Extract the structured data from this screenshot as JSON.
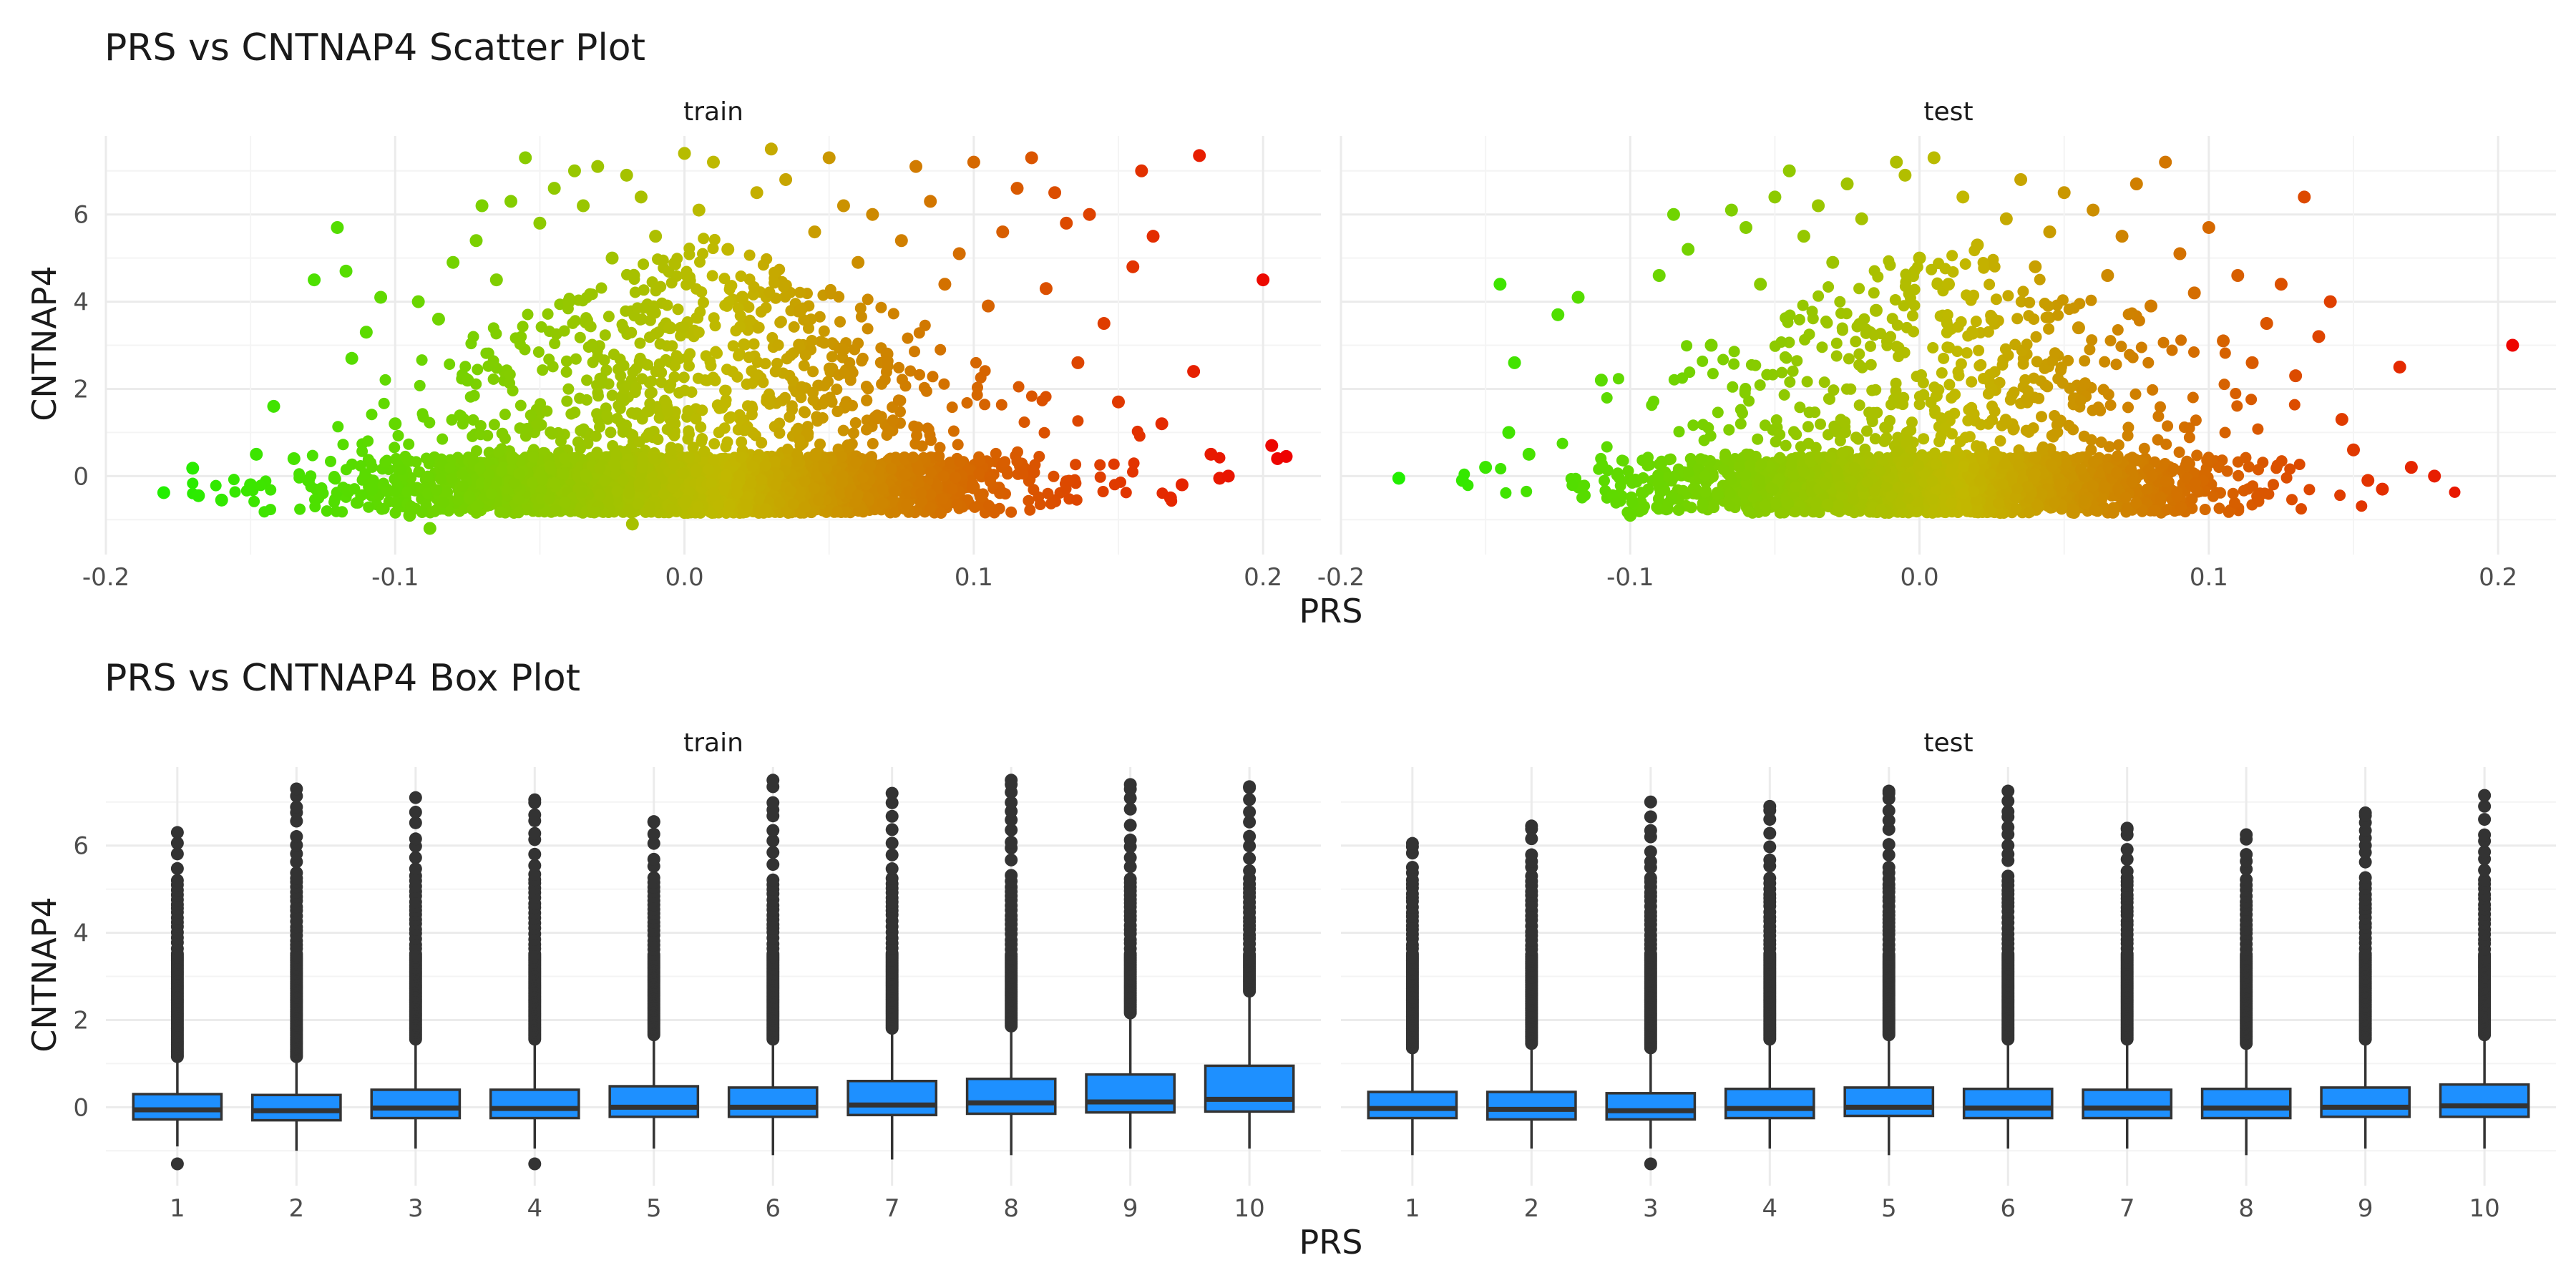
{
  "chart_data": [
    {
      "type": "scatter",
      "title": "PRS vs CNTNAP4 Scatter Plot",
      "xlabel": "PRS",
      "ylabel": "CNTNAP4",
      "facets": [
        "train",
        "test"
      ],
      "xlim": [
        -0.2,
        0.22
      ],
      "ylim": [
        -1.8,
        7.8
      ],
      "xticks": [
        -0.2,
        -0.1,
        0.0,
        0.1,
        0.2
      ],
      "xtick_labels": [
        "-0.2",
        "-0.1",
        "0.0",
        "0.1",
        "0.2"
      ],
      "yticks": [
        0,
        2,
        4,
        6
      ],
      "ytick_labels": [
        "0",
        "2",
        "4",
        "6"
      ],
      "color_scale": {
        "low": "#22ee00",
        "mid": "#c2b800",
        "high": "#ee0000",
        "mapped_to": "PRS"
      },
      "grid": true,
      "legend": "none",
      "series": [
        {
          "facet": "train",
          "points": [
            [
              -0.18,
              -0.38
            ],
            [
              -0.17,
              0.18
            ],
            [
              -0.168,
              -0.45
            ],
            [
              -0.16,
              -0.55
            ],
            [
              -0.15,
              -0.2
            ],
            [
              -0.148,
              0.5
            ],
            [
              -0.142,
              1.6
            ],
            [
              -0.135,
              0.4
            ],
            [
              -0.13,
              -0.1
            ],
            [
              -0.128,
              4.5
            ],
            [
              -0.12,
              5.7
            ],
            [
              -0.117,
              4.7
            ],
            [
              -0.115,
              2.7
            ],
            [
              -0.11,
              3.3
            ],
            [
              -0.108,
              -0.3
            ],
            [
              -0.105,
              4.1
            ],
            [
              -0.1,
              1.2
            ],
            [
              -0.095,
              -0.9
            ],
            [
              -0.092,
              4.0
            ],
            [
              -0.088,
              -1.2
            ],
            [
              -0.085,
              3.6
            ],
            [
              -0.08,
              4.9
            ],
            [
              -0.075,
              2.2
            ],
            [
              -0.072,
              5.4
            ],
            [
              -0.07,
              6.2
            ],
            [
              -0.065,
              4.5
            ],
            [
              -0.06,
              6.3
            ],
            [
              -0.055,
              7.3
            ],
            [
              -0.05,
              5.8
            ],
            [
              -0.045,
              6.6
            ],
            [
              -0.04,
              4.0
            ],
            [
              -0.038,
              7.0
            ],
            [
              -0.035,
              6.2
            ],
            [
              -0.03,
              7.1
            ],
            [
              -0.025,
              5.0
            ],
            [
              -0.02,
              6.9
            ],
            [
              -0.018,
              -1.1
            ],
            [
              -0.015,
              6.4
            ],
            [
              -0.01,
              5.5
            ],
            [
              -0.005,
              3.4
            ],
            [
              0.0,
              7.4
            ],
            [
              0.005,
              6.1
            ],
            [
              0.01,
              7.2
            ],
            [
              0.015,
              5.2
            ],
            [
              0.02,
              4.1
            ],
            [
              0.025,
              6.5
            ],
            [
              0.03,
              7.5
            ],
            [
              0.035,
              6.8
            ],
            [
              0.04,
              3.8
            ],
            [
              0.045,
              5.6
            ],
            [
              0.05,
              7.3
            ],
            [
              0.055,
              6.2
            ],
            [
              0.06,
              4.9
            ],
            [
              0.065,
              6.0
            ],
            [
              0.07,
              2.8
            ],
            [
              0.075,
              5.4
            ],
            [
              0.08,
              7.1
            ],
            [
              0.085,
              6.3
            ],
            [
              0.09,
              4.4
            ],
            [
              0.095,
              5.1
            ],
            [
              0.1,
              7.2
            ],
            [
              0.105,
              3.9
            ],
            [
              0.11,
              5.6
            ],
            [
              0.115,
              6.6
            ],
            [
              0.12,
              7.3
            ],
            [
              0.125,
              4.3
            ],
            [
              0.128,
              6.5
            ],
            [
              0.132,
              5.8
            ],
            [
              0.136,
              2.6
            ],
            [
              0.14,
              6.0
            ],
            [
              0.145,
              3.5
            ],
            [
              0.15,
              1.7
            ],
            [
              0.155,
              4.8
            ],
            [
              0.158,
              7.0
            ],
            [
              0.162,
              5.5
            ],
            [
              0.165,
              1.2
            ],
            [
              0.168,
              -0.5
            ],
            [
              0.172,
              -0.2
            ],
            [
              0.176,
              2.4
            ],
            [
              0.178,
              7.35
            ],
            [
              0.182,
              0.5
            ],
            [
              0.185,
              -0.05
            ],
            [
              0.188,
              0.0
            ],
            [
              0.2,
              4.5
            ],
            [
              0.203,
              0.7
            ],
            [
              0.205,
              0.4
            ],
            [
              0.208,
              0.45
            ]
          ]
        },
        {
          "facet": "test",
          "points": [
            [
              -0.18,
              -0.05
            ],
            [
              -0.158,
              -0.1
            ],
            [
              -0.15,
              0.2
            ],
            [
              -0.145,
              4.4
            ],
            [
              -0.142,
              1.0
            ],
            [
              -0.14,
              2.6
            ],
            [
              -0.135,
              0.5
            ],
            [
              -0.125,
              3.7
            ],
            [
              -0.118,
              4.1
            ],
            [
              -0.11,
              2.2
            ],
            [
              -0.1,
              -0.9
            ],
            [
              -0.09,
              4.6
            ],
            [
              -0.085,
              6.0
            ],
            [
              -0.08,
              5.2
            ],
            [
              -0.072,
              3.0
            ],
            [
              -0.065,
              6.1
            ],
            [
              -0.06,
              5.7
            ],
            [
              -0.055,
              4.4
            ],
            [
              -0.05,
              6.4
            ],
            [
              -0.045,
              7.0
            ],
            [
              -0.04,
              5.5
            ],
            [
              -0.035,
              6.2
            ],
            [
              -0.03,
              4.9
            ],
            [
              -0.025,
              6.7
            ],
            [
              -0.02,
              5.9
            ],
            [
              -0.015,
              3.8
            ],
            [
              -0.008,
              7.2
            ],
            [
              -0.005,
              6.9
            ],
            [
              0.0,
              5.0
            ],
            [
              0.005,
              7.3
            ],
            [
              0.01,
              4.4
            ],
            [
              0.015,
              6.4
            ],
            [
              0.02,
              5.3
            ],
            [
              0.025,
              3.6
            ],
            [
              0.03,
              5.9
            ],
            [
              0.035,
              6.8
            ],
            [
              0.04,
              4.8
            ],
            [
              0.045,
              5.6
            ],
            [
              0.05,
              6.5
            ],
            [
              0.055,
              3.4
            ],
            [
              0.06,
              6.1
            ],
            [
              0.065,
              4.6
            ],
            [
              0.07,
              5.5
            ],
            [
              0.075,
              6.7
            ],
            [
              0.08,
              3.9
            ],
            [
              0.085,
              7.2
            ],
            [
              0.09,
              5.1
            ],
            [
              0.095,
              4.2
            ],
            [
              0.1,
              5.7
            ],
            [
              0.105,
              3.1
            ],
            [
              0.11,
              4.6
            ],
            [
              0.115,
              2.6
            ],
            [
              0.12,
              3.5
            ],
            [
              0.125,
              4.4
            ],
            [
              0.13,
              2.3
            ],
            [
              0.133,
              6.4
            ],
            [
              0.138,
              3.2
            ],
            [
              0.142,
              4.0
            ],
            [
              0.146,
              1.3
            ],
            [
              0.15,
              0.6
            ],
            [
              0.155,
              -0.1
            ],
            [
              0.16,
              -0.3
            ],
            [
              0.166,
              2.5
            ],
            [
              0.17,
              0.2
            ],
            [
              0.178,
              0.0
            ],
            [
              0.205,
              3.0
            ]
          ]
        }
      ]
    },
    {
      "type": "box",
      "title": "PRS vs CNTNAP4 Box Plot",
      "xlabel": "PRS",
      "ylabel": "CNTNAP4",
      "facets": [
        "train",
        "test"
      ],
      "categories": [
        "1",
        "2",
        "3",
        "4",
        "5",
        "6",
        "7",
        "8",
        "9",
        "10"
      ],
      "ylim": [
        -1.8,
        7.8
      ],
      "yticks": [
        0,
        2,
        4,
        6
      ],
      "ytick_labels": [
        "0",
        "2",
        "4",
        "6"
      ],
      "box_color": "#1e90ff",
      "outline_color": "#333333",
      "grid": true,
      "legend": "none",
      "series": [
        {
          "facet": "train",
          "boxes": [
            {
              "q1": -0.28,
              "median": -0.06,
              "q3": 0.3,
              "whisker_low": -0.9,
              "whisker_high": 1.1,
              "outlier_max": 6.3,
              "outlier_min": -1.3
            },
            {
              "q1": -0.3,
              "median": -0.08,
              "q3": 0.28,
              "whisker_low": -1.0,
              "whisker_high": 1.1,
              "outlier_max": 7.3,
              "outlier_min": null
            },
            {
              "q1": -0.25,
              "median": -0.02,
              "q3": 0.4,
              "whisker_low": -0.95,
              "whisker_high": 1.5,
              "outlier_max": 7.1,
              "outlier_min": null
            },
            {
              "q1": -0.25,
              "median": -0.03,
              "q3": 0.4,
              "whisker_low": -0.95,
              "whisker_high": 1.5,
              "outlier_max": 7.05,
              "outlier_min": -1.3
            },
            {
              "q1": -0.22,
              "median": 0.0,
              "q3": 0.48,
              "whisker_low": -0.95,
              "whisker_high": 1.6,
              "outlier_max": 6.55,
              "outlier_min": null
            },
            {
              "q1": -0.22,
              "median": 0.0,
              "q3": 0.45,
              "whisker_low": -1.1,
              "whisker_high": 1.5,
              "outlier_max": 7.5,
              "outlier_min": null
            },
            {
              "q1": -0.18,
              "median": 0.05,
              "q3": 0.6,
              "whisker_low": -1.2,
              "whisker_high": 1.75,
              "outlier_max": 7.2,
              "outlier_min": null
            },
            {
              "q1": -0.15,
              "median": 0.1,
              "q3": 0.65,
              "whisker_low": -1.1,
              "whisker_high": 1.8,
              "outlier_max": 7.5,
              "outlier_min": null
            },
            {
              "q1": -0.12,
              "median": 0.12,
              "q3": 0.75,
              "whisker_low": -0.95,
              "whisker_high": 2.1,
              "outlier_max": 7.4,
              "outlier_min": null
            },
            {
              "q1": -0.1,
              "median": 0.18,
              "q3": 0.95,
              "whisker_low": -0.95,
              "whisker_high": 2.6,
              "outlier_max": 7.35,
              "outlier_min": null
            }
          ]
        },
        {
          "facet": "test",
          "boxes": [
            {
              "q1": -0.25,
              "median": -0.03,
              "q3": 0.35,
              "whisker_low": -1.1,
              "whisker_high": 1.3,
              "outlier_max": 6.05,
              "outlier_min": null
            },
            {
              "q1": -0.28,
              "median": -0.05,
              "q3": 0.35,
              "whisker_low": -0.95,
              "whisker_high": 1.4,
              "outlier_max": 6.45,
              "outlier_min": null
            },
            {
              "q1": -0.28,
              "median": -0.08,
              "q3": 0.32,
              "whisker_low": -0.95,
              "whisker_high": 1.3,
              "outlier_max": 7.0,
              "outlier_min": -1.3
            },
            {
              "q1": -0.25,
              "median": -0.03,
              "q3": 0.42,
              "whisker_low": -0.95,
              "whisker_high": 1.5,
              "outlier_max": 6.9,
              "outlier_min": null
            },
            {
              "q1": -0.2,
              "median": 0.0,
              "q3": 0.45,
              "whisker_low": -1.1,
              "whisker_high": 1.6,
              "outlier_max": 7.25,
              "outlier_min": null
            },
            {
              "q1": -0.25,
              "median": -0.02,
              "q3": 0.42,
              "whisker_low": -0.95,
              "whisker_high": 1.5,
              "outlier_max": 7.25,
              "outlier_min": null
            },
            {
              "q1": -0.25,
              "median": -0.02,
              "q3": 0.4,
              "whisker_low": -0.95,
              "whisker_high": 1.5,
              "outlier_max": 6.4,
              "outlier_min": null
            },
            {
              "q1": -0.25,
              "median": -0.02,
              "q3": 0.42,
              "whisker_low": -1.1,
              "whisker_high": 1.4,
              "outlier_max": 6.25,
              "outlier_min": null
            },
            {
              "q1": -0.22,
              "median": 0.0,
              "q3": 0.45,
              "whisker_low": -0.95,
              "whisker_high": 1.5,
              "outlier_max": 6.75,
              "outlier_min": null
            },
            {
              "q1": -0.22,
              "median": 0.03,
              "q3": 0.52,
              "whisker_low": -0.95,
              "whisker_high": 1.6,
              "outlier_max": 7.15,
              "outlier_min": null
            }
          ]
        }
      ]
    }
  ]
}
